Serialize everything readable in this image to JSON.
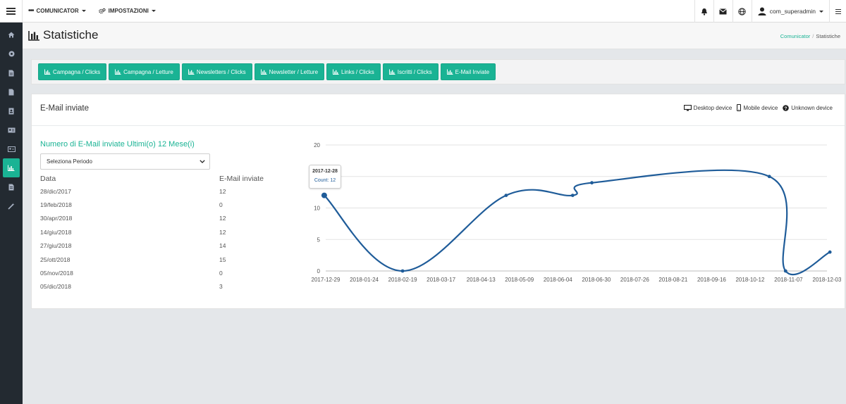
{
  "topbar": {
    "menu1": "COMUNICATOR",
    "menu2": "IMPOSTAZIONI",
    "user": "com_superadmin"
  },
  "page": {
    "title": "Statistiche",
    "breadcrumb_link": "Comunicator",
    "breadcrumb_sep": "/",
    "breadcrumb_current": "Statistiche"
  },
  "buttons": [
    "Campagna / Clicks",
    "Campagna / Letture",
    "Newsletters / Clicks",
    "Newsletter / Letture",
    "Links / Clicks",
    "Iscritti / Clicks",
    "E-Mail Inviate"
  ],
  "panel": {
    "title": "E-Mail inviate",
    "legend": [
      "Desktop device",
      "Mobile device",
      "Unknown device"
    ],
    "subtitle": "Numero di E-Mail inviate Ultimi(o) 12 Mese(i)",
    "select_value": "Seleziona Periodo",
    "col_date": "Data",
    "col_value": "E-Mail inviate",
    "rows": [
      {
        "date": "28/dic/2017",
        "value": "12"
      },
      {
        "date": "19/feb/2018",
        "value": "0"
      },
      {
        "date": "30/apr/2018",
        "value": "12"
      },
      {
        "date": "14/giu/2018",
        "value": "12"
      },
      {
        "date": "27/giu/2018",
        "value": "14"
      },
      {
        "date": "25/ott/2018",
        "value": "15"
      },
      {
        "date": "05/nov/2018",
        "value": "0"
      },
      {
        "date": "05/dic/2018",
        "value": "3"
      }
    ],
    "tooltip": {
      "date": "2017-12-28",
      "count": "Count: 12"
    }
  },
  "colors": {
    "accent": "#1ab394",
    "line": "#1f5c99",
    "sidebar": "#232a31"
  },
  "icons": {
    "sidebar": [
      "home-icon",
      "circle-icon",
      "file-icon",
      "file-icon",
      "address-book-icon",
      "id-card-icon",
      "id-badge-icon",
      "bar-chart-icon",
      "file-text-icon",
      "magic-icon"
    ],
    "topright": [
      "bell-icon",
      "envelope-icon",
      "globe-icon",
      "user-icon",
      "menu-icon"
    ]
  },
  "chart_data": {
    "type": "line",
    "x": [
      "2017-12-28",
      "2018-02-19",
      "2018-04-30",
      "2018-06-14",
      "2018-06-27",
      "2018-10-25",
      "2018-11-05",
      "2018-12-05"
    ],
    "values": [
      12,
      0,
      12,
      12,
      14,
      15,
      0,
      3
    ],
    "tick_labels": [
      "2017-12-29",
      "2018-01-24",
      "2018-02-19",
      "2018-03-17",
      "2018-04-13",
      "2018-05-09",
      "2018-06-04",
      "2018-06-30",
      "2018-07-26",
      "2018-08-21",
      "2018-09-16",
      "2018-10-12",
      "2018-11-07",
      "2018-12-03"
    ],
    "y_ticks": [
      0,
      5,
      10,
      15,
      20
    ],
    "ylim": [
      0,
      20
    ],
    "grid": true
  }
}
